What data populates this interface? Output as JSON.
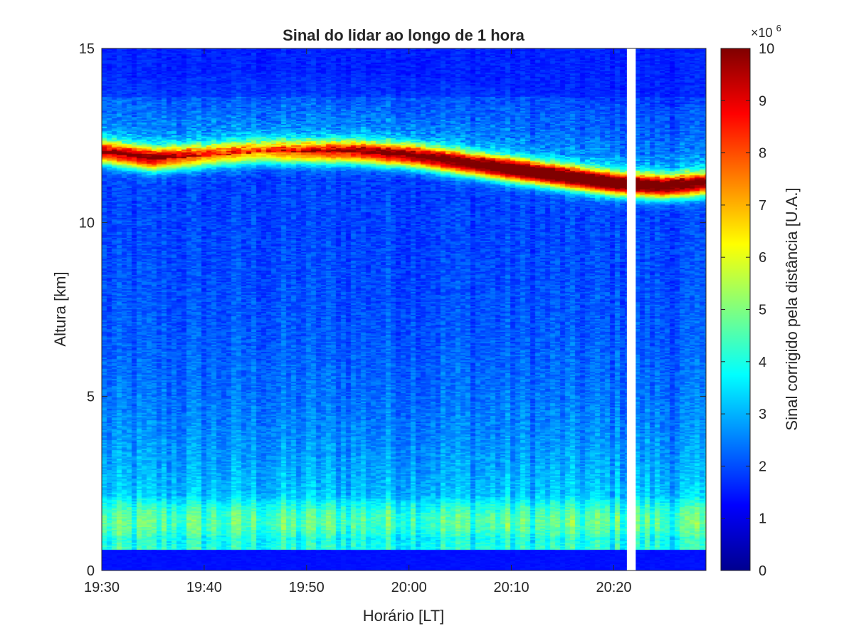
{
  "chart_data": {
    "type": "heatmap",
    "title": "Sinal do lidar ao longo de 1 hora",
    "xlabel": "Horário [LT]",
    "ylabel": "Altura [km]",
    "colorbar_label": "Sinal corrigido pela distância [U.A.]",
    "colorbar_multiplier": "×10",
    "colorbar_exponent": "6",
    "colormap": "jet",
    "x_ticks": [
      "19:30",
      "19:40",
      "19:50",
      "20:00",
      "20:10",
      "20:20"
    ],
    "y_ticks": [
      0,
      5,
      10,
      15
    ],
    "c_ticks": [
      0,
      1,
      2,
      3,
      4,
      5,
      6,
      7,
      8,
      9,
      10
    ],
    "xlim": [
      "19:30",
      "20:29"
    ],
    "ylim": [
      0,
      15
    ],
    "clim": [
      0,
      10
    ],
    "time_start": "19:30",
    "time_end": "20:29",
    "no_data_interval": [
      "20:21",
      "20:22"
    ],
    "layers": [
      {
        "name": "cirrus",
        "time": [
          "19:30",
          "19:35",
          "19:40",
          "19:45",
          "19:50",
          "19:55",
          "20:00",
          "20:05",
          "20:10",
          "20:15",
          "20:20",
          "20:25",
          "20:29"
        ],
        "height_km": [
          12.0,
          11.8,
          11.9,
          12.0,
          12.0,
          12.0,
          11.9,
          11.7,
          11.5,
          11.3,
          11.1,
          11.0,
          11.1
        ],
        "peak_signal": [
          7.5,
          8.0,
          6.0,
          5.5,
          6.5,
          7.5,
          8.5,
          9.0,
          10.0,
          10.0,
          10.0,
          9.5,
          8.5
        ]
      },
      {
        "name": "boundary_layer",
        "top_km": 3.0,
        "peak_height_km": 1.4,
        "peak_signal": 4.0,
        "surface_gap_km": 0.6
      }
    ]
  }
}
